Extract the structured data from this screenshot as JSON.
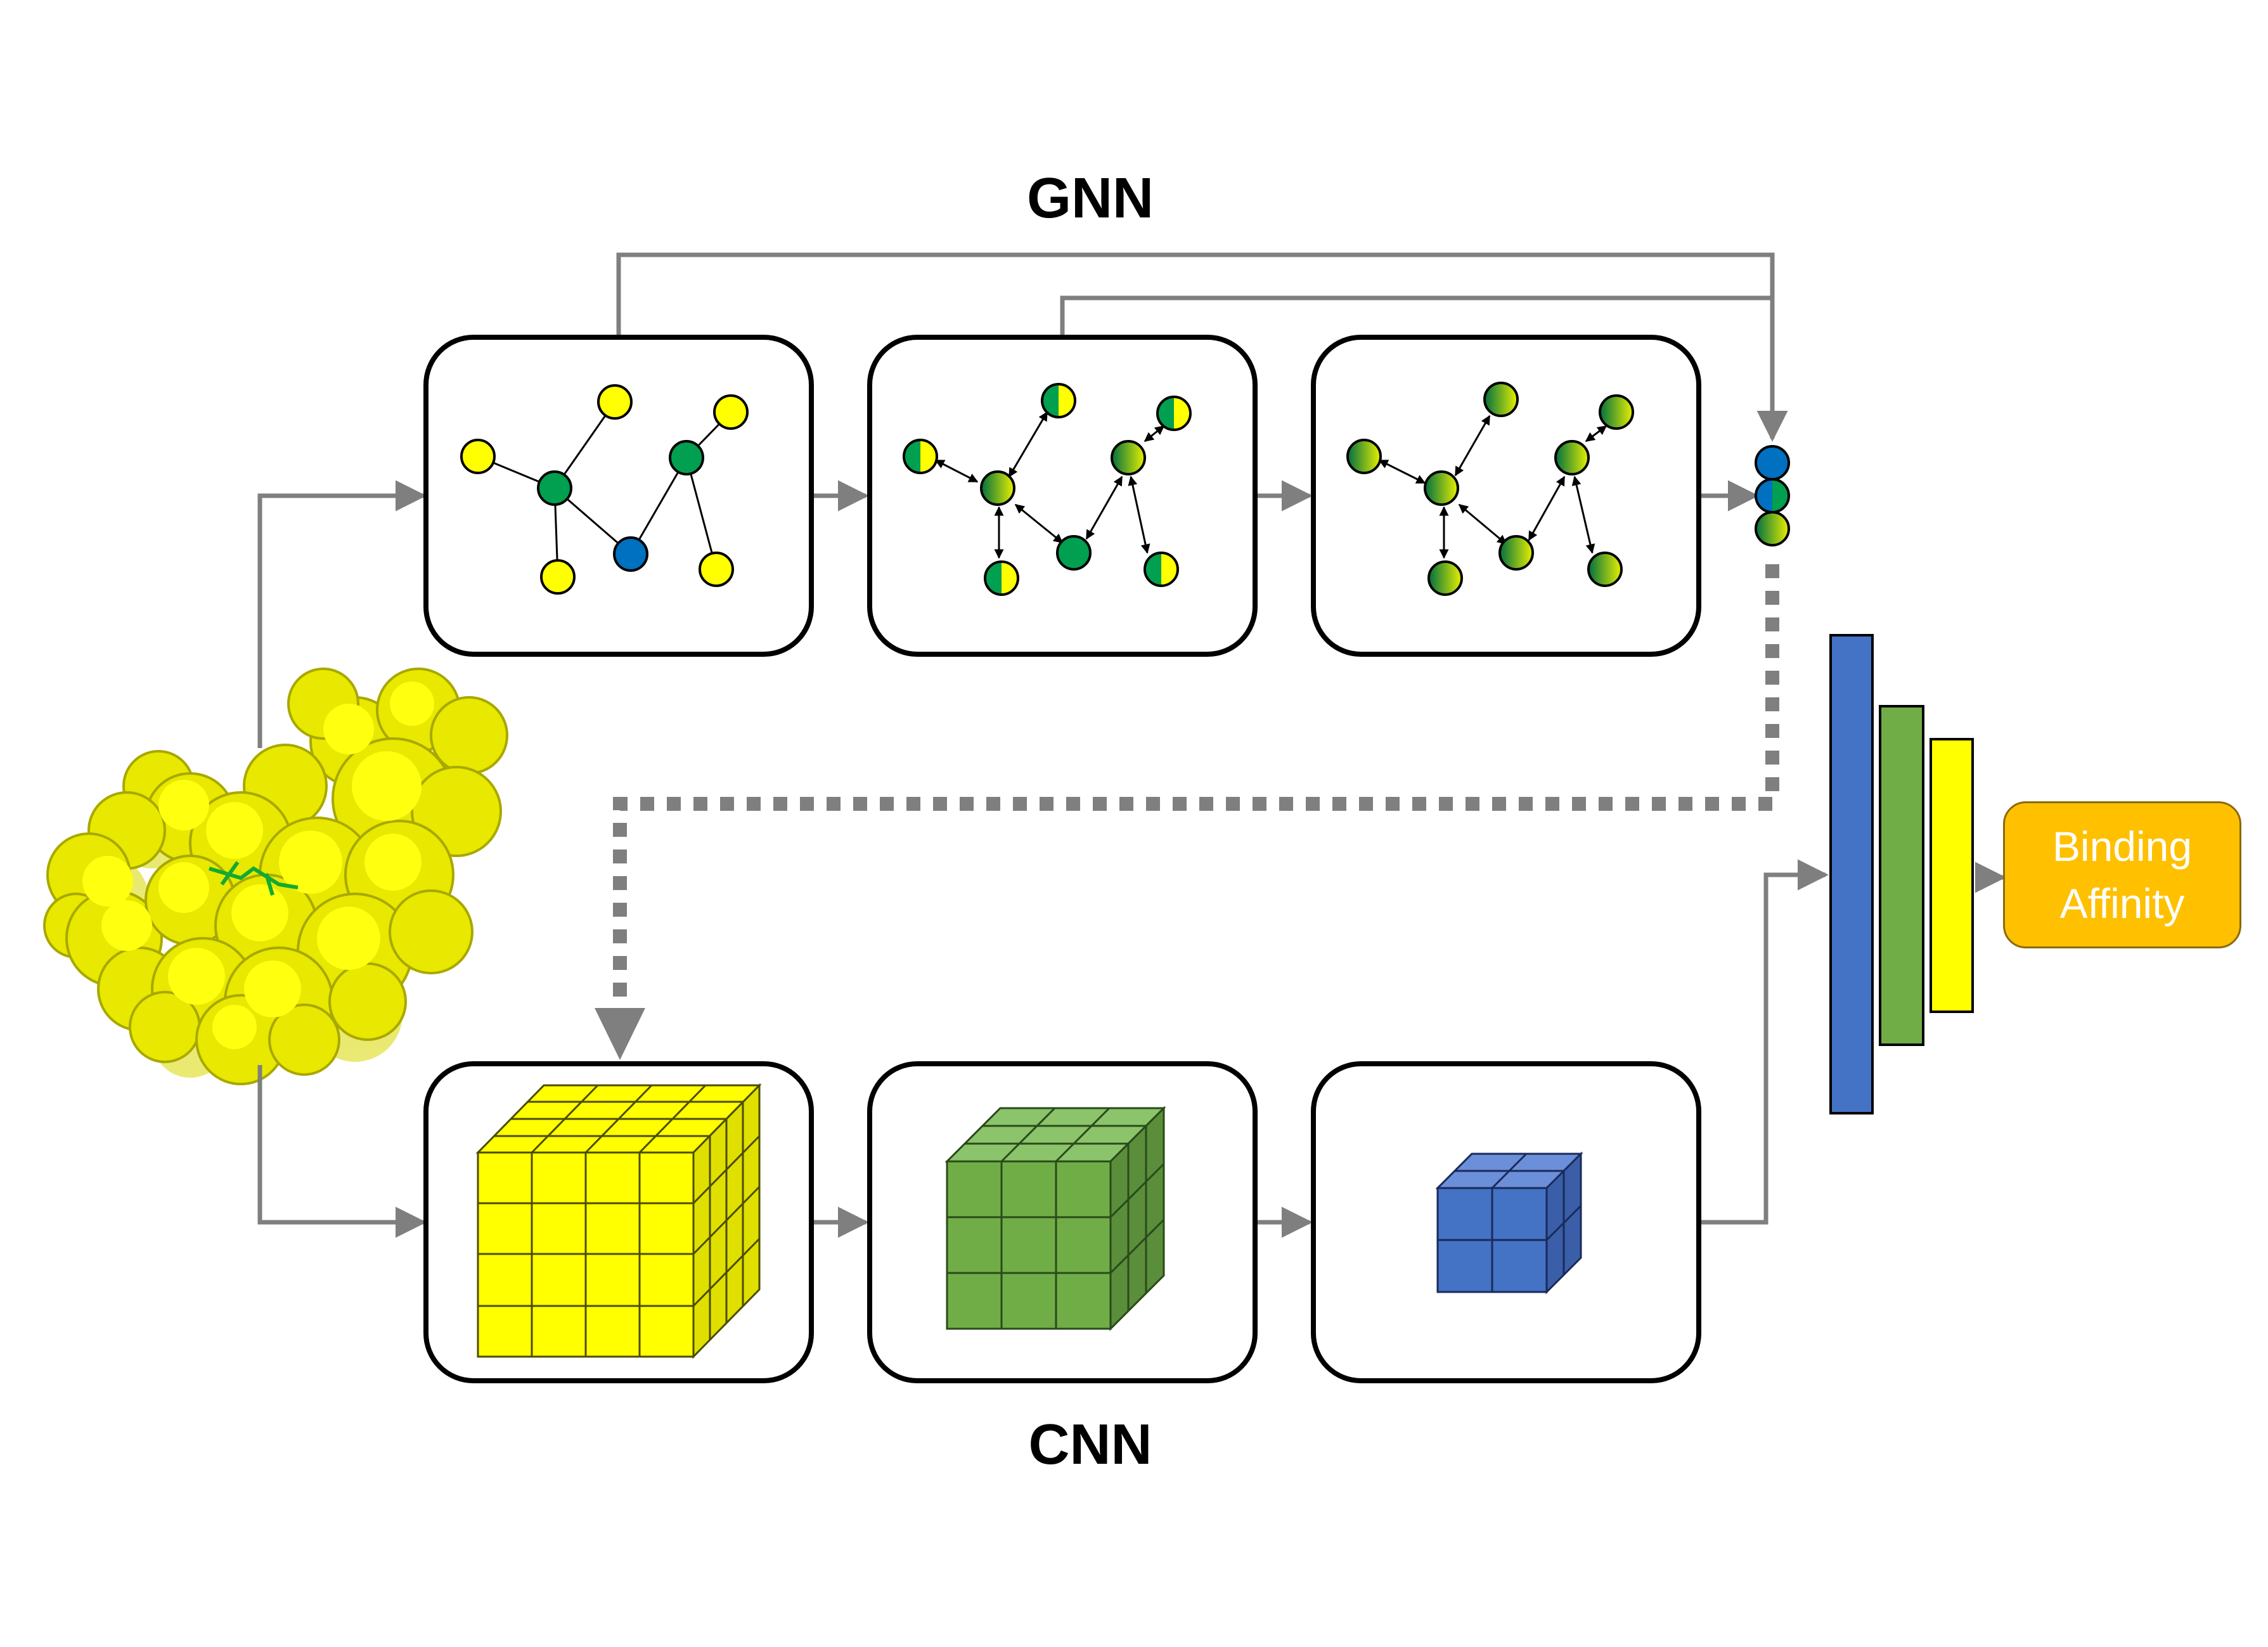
{
  "labels": {
    "gnn": "GNN",
    "cnn": "CNN",
    "output_line1": "Binding",
    "output_line2": "Affinity"
  },
  "colors": {
    "yellow": "#FFFF00",
    "green": "#00A050",
    "blue": "#0070C0",
    "cnn_green": "#70AD47",
    "cnn_blue": "#4472C4",
    "arrow_gray": "#7F7F7F",
    "output_orange": "#FFC000"
  },
  "icons": [
    "protein-surface-icon",
    "graph-icon",
    "cube-grid-icon",
    "dense-layer-icon"
  ]
}
